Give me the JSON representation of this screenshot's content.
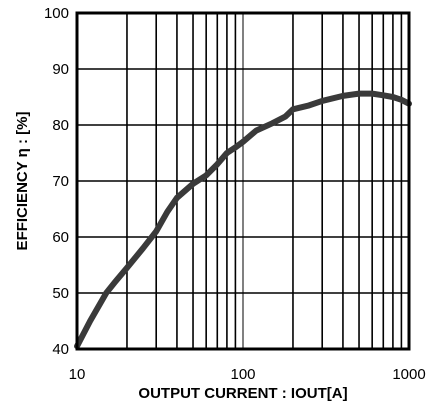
{
  "chart_data": {
    "type": "line",
    "xlabel": "OUTPUT CURRENT : IOUT[A]",
    "ylabel": "EFFICIENCY  η : [%]",
    "xscale": "log",
    "xlim": [
      10,
      1000
    ],
    "ylim": [
      40,
      100
    ],
    "x_tick_labels": [
      "10",
      "100",
      "1000"
    ],
    "y_tick_labels": [
      "40",
      "50",
      "60",
      "70",
      "80",
      "90",
      "100"
    ],
    "grid": true,
    "series": [
      {
        "x": [
          10,
          12,
          15,
          17,
          20,
          25,
          30,
          35,
          40,
          50,
          60,
          70,
          80,
          90,
          100,
          120,
          150,
          180,
          200,
          250,
          300,
          400,
          500,
          600,
          700,
          800,
          900,
          1000
        ],
        "y": [
          40.5,
          45,
          50,
          52,
          54.5,
          58,
          61,
          64.5,
          67,
          69.5,
          71,
          73,
          75,
          76,
          77,
          79,
          80.3,
          81.5,
          82.8,
          83.5,
          84.3,
          85.2,
          85.6,
          85.6,
          85.3,
          85,
          84.5,
          83.8
        ]
      }
    ],
    "colors": {
      "line": "#3a3a3a",
      "grid": "#000000",
      "frame": "#000000"
    }
  }
}
